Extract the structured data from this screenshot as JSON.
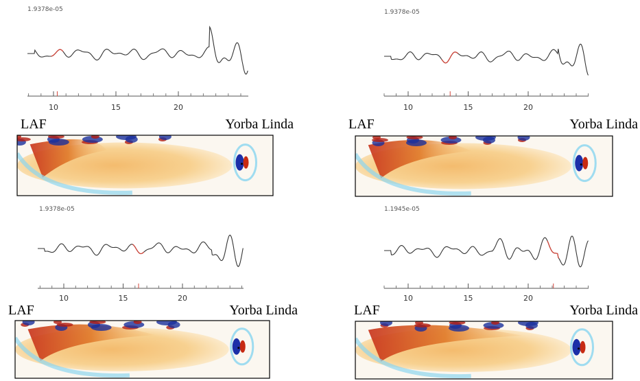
{
  "panels": [
    {
      "amplitude": "1.9378e-05",
      "ticks": [
        10,
        15,
        20
      ],
      "left_label": "LAF",
      "right_label": "Yorba Linda"
    },
    {
      "amplitude": "1.9378e-05",
      "ticks": [
        10,
        15,
        20
      ],
      "left_label": "LAF",
      "right_label": "Yorba Linda"
    },
    {
      "amplitude": "1.9378e-05",
      "ticks": [
        10,
        15,
        20
      ],
      "left_label": "LAF",
      "right_label": "Yorba Linda"
    },
    {
      "amplitude": "1.1945e-05",
      "ticks": [
        10,
        15,
        20
      ],
      "left_label": "LAF",
      "right_label": "Yorba Linda"
    }
  ]
}
